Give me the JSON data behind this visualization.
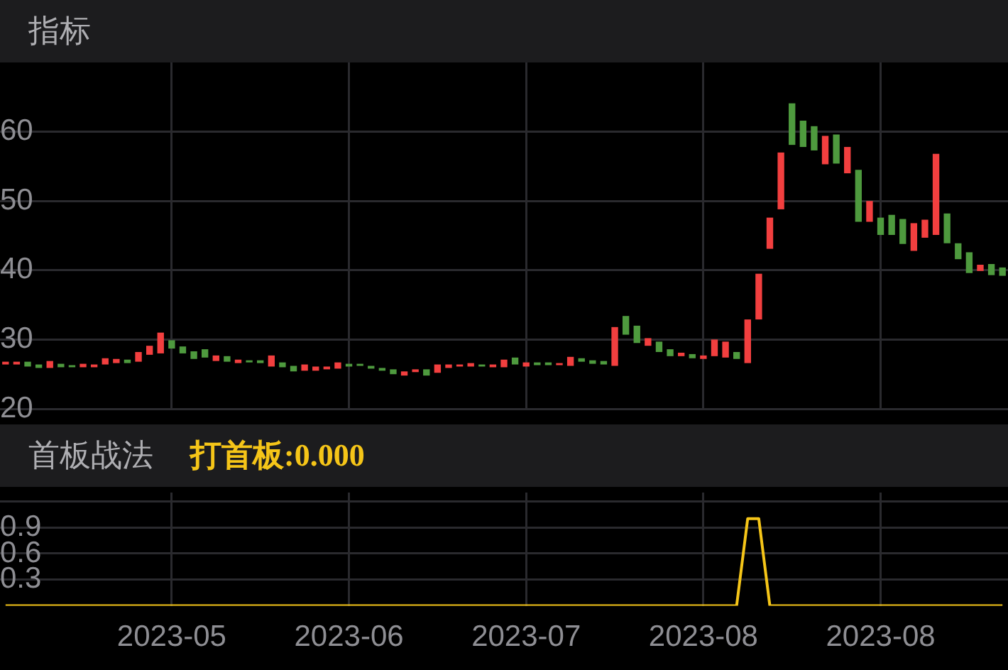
{
  "chart_data": [
    {
      "type": "candlestick",
      "title": "指标",
      "tick_labels": "y",
      "grid": true,
      "categories": [
        null,
        null,
        null,
        null,
        null,
        null,
        null,
        null,
        null,
        null,
        null,
        null,
        null,
        null,
        null,
        "2023-05",
        null,
        null,
        null,
        null,
        null,
        null,
        null,
        null,
        null,
        null,
        null,
        null,
        null,
        null,
        null,
        "2023-06",
        null,
        null,
        null,
        null,
        null,
        null,
        null,
        null,
        null,
        null,
        null,
        null,
        null,
        null,
        null,
        "2023-07",
        null,
        null,
        null,
        null,
        null,
        null,
        null,
        null,
        null,
        null,
        null,
        null,
        null,
        null,
        null,
        "2023-08",
        null,
        null,
        null,
        null,
        null,
        null,
        null,
        null,
        null,
        null,
        null,
        null,
        null,
        null,
        null,
        "2023-08",
        null,
        null,
        null,
        null,
        null,
        null,
        null,
        null,
        null,
        null,
        null
      ],
      "ohlc": [
        [
          26.4,
          26.8,
          26.4,
          26.8
        ],
        [
          26.4,
          26.8,
          26.4,
          26.8
        ],
        [
          26.8,
          26.8,
          26.1,
          26.1
        ],
        [
          26.4,
          26.4,
          25.9,
          25.9
        ],
        [
          25.9,
          26.9,
          25.9,
          26.9
        ],
        [
          26.5,
          26.5,
          26.0,
          26.0
        ],
        [
          26.3,
          26.3,
          26.0,
          26.0
        ],
        [
          26.0,
          26.5,
          26.0,
          26.5
        ],
        [
          26.0,
          26.4,
          26.0,
          26.4
        ],
        [
          26.4,
          27.3,
          26.4,
          27.3
        ],
        [
          26.6,
          27.2,
          26.6,
          27.2
        ],
        [
          27.1,
          27.1,
          26.6,
          26.6
        ],
        [
          26.8,
          28.2,
          26.8,
          28.2
        ],
        [
          27.8,
          29.1,
          27.8,
          29.1
        ],
        [
          28.0,
          31.0,
          28.0,
          31.0
        ],
        [
          29.9,
          29.9,
          28.7,
          28.7
        ],
        [
          29.0,
          29.0,
          28.0,
          28.0
        ],
        [
          28.3,
          28.3,
          27.2,
          27.2
        ],
        [
          28.6,
          28.6,
          27.4,
          27.4
        ],
        [
          26.9,
          27.7,
          26.9,
          27.7
        ],
        [
          27.6,
          27.6,
          26.8,
          26.8
        ],
        [
          26.6,
          27.1,
          26.6,
          27.1
        ],
        [
          27.0,
          27.0,
          26.7,
          26.7
        ],
        [
          27.0,
          27.0,
          26.6,
          26.6
        ],
        [
          26.1,
          27.7,
          26.1,
          27.7
        ],
        [
          26.7,
          26.7,
          26.0,
          26.0
        ],
        [
          26.2,
          26.2,
          25.4,
          25.4
        ],
        [
          25.5,
          26.4,
          25.5,
          26.4
        ],
        [
          25.5,
          26.1,
          25.5,
          26.1
        ],
        [
          25.7,
          26.1,
          25.7,
          26.1
        ],
        [
          25.8,
          26.7,
          25.8,
          26.7
        ],
        [
          26.5,
          26.5,
          26.1,
          26.1
        ],
        [
          26.5,
          26.5,
          26.2,
          26.2
        ],
        [
          26.2,
          26.2,
          25.8,
          25.8
        ],
        [
          25.9,
          25.9,
          25.5,
          25.5
        ],
        [
          25.7,
          25.7,
          25.0,
          25.0
        ],
        [
          24.8,
          25.4,
          24.8,
          25.4
        ],
        [
          25.3,
          25.7,
          25.3,
          25.7
        ],
        [
          25.7,
          25.7,
          24.8,
          24.8
        ],
        [
          25.2,
          26.4,
          25.2,
          26.4
        ],
        [
          25.9,
          26.4,
          25.9,
          26.4
        ],
        [
          26.1,
          26.4,
          26.1,
          26.4
        ],
        [
          26.1,
          26.6,
          26.1,
          26.6
        ],
        [
          26.4,
          26.4,
          26.1,
          26.1
        ],
        [
          26.0,
          26.4,
          26.0,
          26.4
        ],
        [
          26.0,
          27.1,
          26.0,
          27.1
        ],
        [
          27.4,
          27.4,
          26.4,
          26.4
        ],
        [
          26.1,
          26.7,
          26.1,
          26.7
        ],
        [
          26.7,
          26.7,
          26.3,
          26.3
        ],
        [
          26.7,
          26.7,
          26.3,
          26.3
        ],
        [
          26.3,
          26.6,
          26.3,
          26.6
        ],
        [
          26.2,
          27.5,
          26.2,
          27.5
        ],
        [
          27.3,
          27.3,
          26.8,
          26.8
        ],
        [
          27.0,
          27.0,
          26.5,
          26.5
        ],
        [
          26.9,
          26.9,
          26.4,
          26.4
        ],
        [
          26.2,
          31.8,
          26.2,
          31.8
        ],
        [
          33.4,
          33.4,
          30.7,
          30.7
        ],
        [
          32.0,
          32.0,
          29.5,
          29.5
        ],
        [
          29.1,
          30.2,
          29.1,
          30.2
        ],
        [
          29.7,
          29.7,
          28.2,
          28.2
        ],
        [
          28.6,
          28.6,
          27.6,
          27.6
        ],
        [
          27.6,
          28.1,
          27.6,
          28.1
        ],
        [
          27.9,
          27.9,
          27.3,
          27.3
        ],
        [
          27.2,
          27.7,
          27.2,
          27.7
        ],
        [
          27.6,
          30.0,
          27.6,
          30.0
        ],
        [
          27.4,
          29.7,
          27.4,
          29.7
        ],
        [
          28.2,
          28.2,
          27.2,
          27.2
        ],
        [
          26.6,
          32.9,
          26.6,
          32.9
        ],
        [
          32.9,
          39.5,
          32.9,
          39.5
        ],
        [
          43.1,
          47.6,
          43.1,
          47.6
        ],
        [
          48.8,
          57.0,
          48.8,
          57.0
        ],
        [
          64.1,
          64.1,
          58.1,
          58.1
        ],
        [
          61.6,
          61.6,
          57.8,
          57.8
        ],
        [
          60.8,
          60.8,
          57.3,
          57.3
        ],
        [
          55.3,
          59.4,
          55.3,
          59.4
        ],
        [
          59.6,
          59.6,
          55.4,
          55.4
        ],
        [
          54.0,
          57.8,
          54.0,
          57.8
        ],
        [
          54.5,
          54.5,
          47.0,
          47.0
        ],
        [
          47.0,
          50.0,
          47.0,
          50.0
        ],
        [
          47.6,
          47.6,
          45.1,
          45.1
        ],
        [
          48.0,
          48.0,
          45.1,
          45.1
        ],
        [
          47.4,
          47.4,
          43.8,
          43.8
        ],
        [
          42.8,
          46.8,
          42.8,
          46.8
        ],
        [
          44.7,
          47.3,
          44.7,
          47.3
        ],
        [
          45.1,
          56.8,
          45.1,
          56.8
        ],
        [
          48.2,
          48.2,
          43.9,
          43.9
        ],
        [
          43.9,
          43.9,
          41.6,
          41.6
        ],
        [
          42.6,
          42.6,
          39.6,
          39.6
        ],
        [
          39.9,
          40.8,
          39.9,
          40.8
        ],
        [
          40.9,
          40.9,
          39.3,
          39.3
        ],
        [
          40.4,
          40.4,
          39.2,
          39.2
        ]
      ],
      "colors": [
        "#f23f3f",
        "#f23f3f",
        "#4e9a3e",
        "#4e9a3e",
        "#f23f3f",
        "#4e9a3e",
        "#4e9a3e",
        "#f23f3f",
        "#f23f3f",
        "#f23f3f",
        "#f23f3f",
        "#4e9a3e",
        "#f23f3f",
        "#f23f3f",
        "#f23f3f",
        "#4e9a3e",
        "#4e9a3e",
        "#4e9a3e",
        "#4e9a3e",
        "#f23f3f",
        "#4e9a3e",
        "#f23f3f",
        "#4e9a3e",
        "#4e9a3e",
        "#f23f3f",
        "#4e9a3e",
        "#4e9a3e",
        "#f23f3f",
        "#f23f3f",
        "#f23f3f",
        "#f23f3f",
        "#4e9a3e",
        "#4e9a3e",
        "#4e9a3e",
        "#4e9a3e",
        "#4e9a3e",
        "#f23f3f",
        "#f23f3f",
        "#4e9a3e",
        "#f23f3f",
        "#f23f3f",
        "#f23f3f",
        "#f23f3f",
        "#4e9a3e",
        "#f23f3f",
        "#f23f3f",
        "#4e9a3e",
        "#f23f3f",
        "#4e9a3e",
        "#4e9a3e",
        "#f23f3f",
        "#f23f3f",
        "#4e9a3e",
        "#4e9a3e",
        "#4e9a3e",
        "#f23f3f",
        "#4e9a3e",
        "#4e9a3e",
        "#f23f3f",
        "#4e9a3e",
        "#4e9a3e",
        "#f23f3f",
        "#4e9a3e",
        "#f23f3f",
        "#f23f3f",
        "#f23f3f",
        "#4e9a3e",
        "#f23f3f",
        "#f23f3f",
        "#f23f3f",
        "#f23f3f",
        "#4e9a3e",
        "#4e9a3e",
        "#4e9a3e",
        "#f23f3f",
        "#4e9a3e",
        "#f23f3f",
        "#4e9a3e",
        "#f23f3f",
        "#4e9a3e",
        "#4e9a3e",
        "#4e9a3e",
        "#f23f3f",
        "#f23f3f",
        "#f23f3f",
        "#4e9a3e",
        "#4e9a3e",
        "#4e9a3e",
        "#f23f3f",
        "#4e9a3e",
        "#4e9a3e"
      ],
      "ylim": [
        20,
        70
      ],
      "yticks": [
        20,
        30,
        40,
        50,
        60
      ]
    },
    {
      "type": "line",
      "title": "首板战法",
      "annotations": [
        "打首板:0.000"
      ],
      "grid": true,
      "categories": [
        null,
        null,
        null,
        null,
        null,
        null,
        null,
        null,
        null,
        null,
        null,
        null,
        null,
        null,
        null,
        "2023-05",
        null,
        null,
        null,
        null,
        null,
        null,
        null,
        null,
        null,
        null,
        null,
        null,
        null,
        null,
        null,
        "2023-06",
        null,
        null,
        null,
        null,
        null,
        null,
        null,
        null,
        null,
        null,
        null,
        null,
        null,
        null,
        null,
        "2023-07",
        null,
        null,
        null,
        null,
        null,
        null,
        null,
        null,
        null,
        null,
        null,
        null,
        null,
        null,
        null,
        "2023-08",
        null,
        null,
        null,
        null,
        null,
        null,
        null,
        null,
        null,
        null,
        null,
        null,
        null,
        null,
        null,
        "2023-08",
        null,
        null,
        null,
        null,
        null,
        null,
        null,
        null,
        null,
        null,
        null
      ],
      "series": [
        {
          "color": "#f5c518",
          "values": [
            0,
            0,
            0,
            0,
            0,
            0,
            0,
            0,
            0,
            0,
            0,
            0,
            0,
            0,
            0,
            0,
            0,
            0,
            0,
            0,
            0,
            0,
            0,
            0,
            0,
            0,
            0,
            0,
            0,
            0,
            0,
            0,
            0,
            0,
            0,
            0,
            0,
            0,
            0,
            0,
            0,
            0,
            0,
            0,
            0,
            0,
            0,
            0,
            0,
            0,
            0,
            0,
            0,
            0,
            0,
            0,
            0,
            0,
            0,
            0,
            0,
            0,
            0,
            0,
            0,
            0,
            0,
            1,
            1,
            0,
            0,
            0,
            0,
            0,
            0,
            0,
            0,
            0,
            0,
            0,
            0,
            0,
            0,
            0,
            0,
            0,
            0,
            0,
            0,
            0,
            0
          ]
        }
      ],
      "marker": "none",
      "line_style": "solid",
      "ylim": [
        0,
        1.3
      ],
      "yticks": [
        0.3,
        0.6,
        0.9,
        {
          "value": 1.2,
          "label": null
        }
      ]
    }
  ]
}
